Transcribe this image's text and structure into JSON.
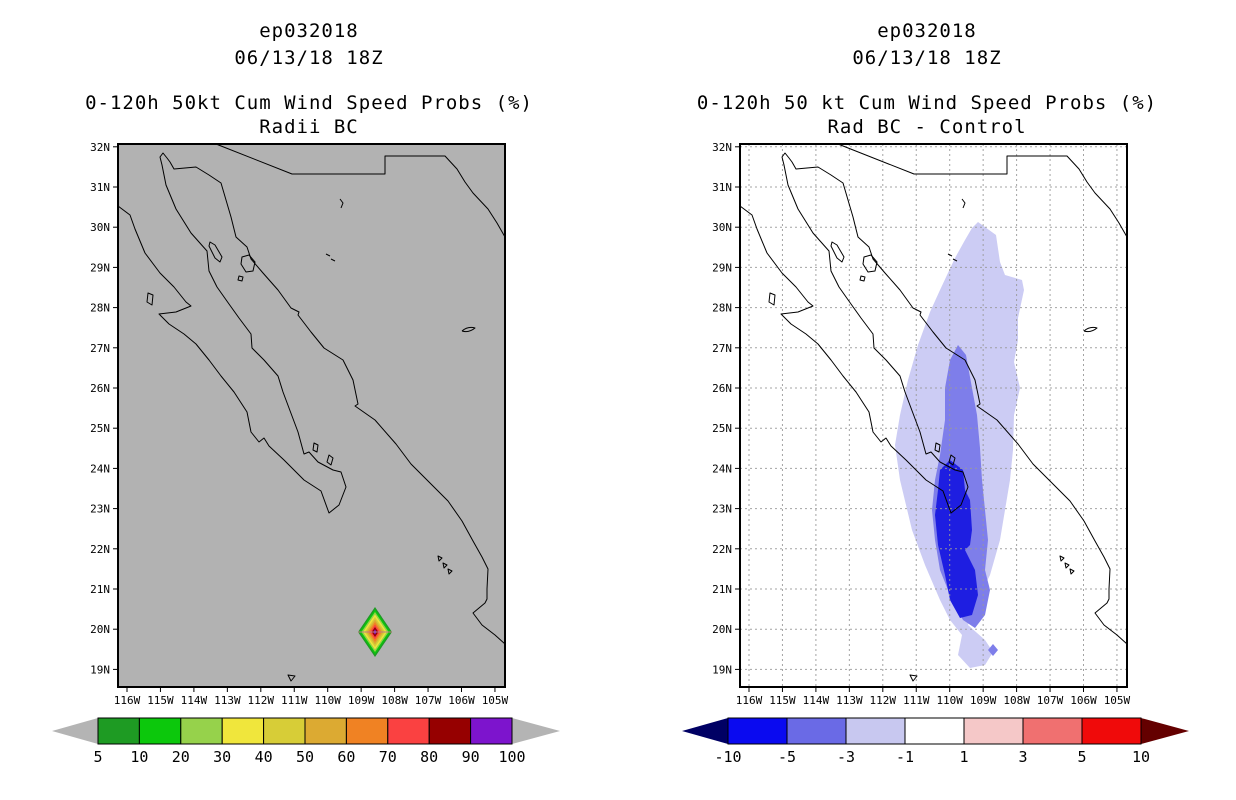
{
  "panels": [
    {
      "storm_id": "ep032018",
      "datetime": "06/13/18 18Z",
      "prob_title": "0-120h 50kt Cum Wind Speed Probs (%)",
      "subtitle": "Radii BC",
      "map": {
        "background": "#b2b2b2",
        "grid": false,
        "has_max_diamond": true,
        "lat_labels": [
          "32N",
          "31N",
          "30N",
          "29N",
          "28N",
          "27N",
          "26N",
          "25N",
          "24N",
          "23N",
          "22N",
          "21N",
          "20N",
          "19N"
        ],
        "lon_labels": [
          "116W",
          "115W",
          "114W",
          "113W",
          "112W",
          "111W",
          "110W",
          "109W",
          "108W",
          "107W",
          "106W",
          "105W"
        ]
      },
      "colorbar": {
        "labels": [
          "5",
          "10",
          "20",
          "30",
          "40",
          "50",
          "60",
          "70",
          "80",
          "90",
          "100"
        ],
        "segment_colors": [
          "#1e9b23",
          "#0cc80c",
          "#96d24b",
          "#f0e63c",
          "#d7cd37",
          "#dcaa32",
          "#f08223",
          "#fa4141",
          "#960000",
          "#7d14cd"
        ],
        "left_arrow_color": "#b4b4b4",
        "right_arrow_color": "#b4b4b4"
      }
    },
    {
      "storm_id": "ep032018",
      "datetime": "06/13/18 18Z",
      "prob_title": "0-120h 50 kt Cum Wind Speed Probs (%)",
      "subtitle": "Rad BC - Control",
      "map": {
        "background": "#ffffff",
        "grid": true,
        "grid_color": "#9a9a9a",
        "has_difference_shading": true,
        "shading_colors": {
          "light": "#ccccf4",
          "medium": "#7e7eea",
          "dark": "#1e1ee1"
        },
        "lat_labels": [
          "32N",
          "31N",
          "30N",
          "29N",
          "28N",
          "27N",
          "26N",
          "25N",
          "24N",
          "23N",
          "22N",
          "21N",
          "20N",
          "19N"
        ],
        "lon_labels": [
          "116W",
          "115W",
          "114W",
          "113W",
          "112W",
          "111W",
          "110W",
          "109W",
          "108W",
          "107W",
          "106W",
          "105W"
        ]
      },
      "colorbar": {
        "labels": [
          "-10",
          "-5",
          "-3",
          "-1",
          "1",
          "3",
          "5",
          "10"
        ],
        "segment_colors": [
          "#0a0af0",
          "#6a6ae6",
          "#c8c8f0",
          "#ffffff",
          "#f5c8c8",
          "#f07070",
          "#f00a0a"
        ],
        "left_arrow_color": "#000064",
        "right_arrow_color": "#640000"
      }
    }
  ],
  "chart_data": [
    {
      "type": "heatmap",
      "title": "ep032018",
      "subtitle": "06/13/18 18Z",
      "variable": "0-120h 50kt Cum Wind Speed Probs (%)",
      "experiment": "Radii BC",
      "xlabel_ticks": [
        "116W",
        "115W",
        "114W",
        "113W",
        "112W",
        "111W",
        "110W",
        "109W",
        "108W",
        "107W",
        "106W",
        "105W"
      ],
      "ylabel_ticks": [
        "32N",
        "31N",
        "30N",
        "29N",
        "28N",
        "27N",
        "26N",
        "25N",
        "24N",
        "23N",
        "22N",
        "21N",
        "20N",
        "19N"
      ],
      "lon_range_deg_west": [
        116.3,
        104.7
      ],
      "lat_range_deg_north": [
        18.6,
        32.1
      ],
      "contour_levels_percent": [
        5,
        10,
        20,
        30,
        40,
        50,
        60,
        70,
        80,
        90,
        100
      ],
      "palette": [
        "#1e9b23",
        "#0cc80c",
        "#96d24b",
        "#f0e63c",
        "#d7cd37",
        "#dcaa32",
        "#f08223",
        "#fa4141",
        "#960000",
        "#7d14cd"
      ],
      "background": "land-and-sea shaded gray, black coastlines",
      "data_summary": "Single small concentric diamond-shaped probability maximum centered near 108.6W 19.9N; values rise from 5% on the outer ring through 10,20,30,40,50,60,70,80,90 to >90% (purple) at the center; remainder of domain below 5%."
    },
    {
      "type": "heatmap",
      "title": "ep032018",
      "subtitle": "06/13/18 18Z",
      "variable": "0-120h 50 kt Cum Wind Speed Probs (%)",
      "experiment": "Rad BC - Control (difference)",
      "xlabel_ticks": [
        "116W",
        "115W",
        "114W",
        "113W",
        "112W",
        "111W",
        "110W",
        "109W",
        "108W",
        "107W",
        "106W",
        "105W"
      ],
      "ylabel_ticks": [
        "32N",
        "31N",
        "30N",
        "29N",
        "28N",
        "27N",
        "26N",
        "25N",
        "24N",
        "23N",
        "22N",
        "21N",
        "20N",
        "19N"
      ],
      "lon_range_deg_west": [
        116.3,
        104.7
      ],
      "lat_range_deg_north": [
        18.6,
        32.1
      ],
      "contour_levels_percent": [
        -10,
        -5,
        -3,
        -1,
        1,
        3,
        5,
        10
      ],
      "palette": [
        "#0a0af0",
        "#6a6ae6",
        "#c8c8f0",
        "#ffffff",
        "#f5c8c8",
        "#f07070",
        "#f00a0a"
      ],
      "background": "white, dashed gray 1-degree graticule, black coastlines",
      "data_summary": "Broad negative-difference region over southern Baja California and adjacent Pacific: outer -1 to -3 band from about 29.5N south to 19N along 111-108W, inner -3 to -5 band from about 27N to 20.5N, and an elongated -5 to -10 core near 109.8W from about 24.2N to 20.4N; small isolated -3 to -5 spot near 108.7W 19.5N; no positive differences shown."
    }
  ]
}
